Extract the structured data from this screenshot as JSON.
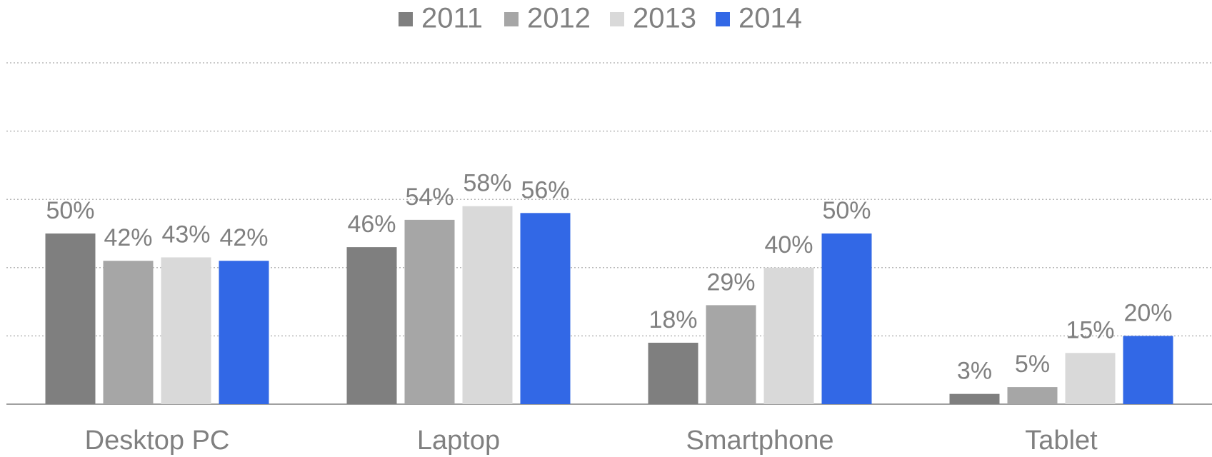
{
  "chart_data": {
    "type": "bar",
    "categories": [
      "Desktop PC",
      "Laptop",
      "Smartphone",
      "Tablet"
    ],
    "series": [
      {
        "name": "2011",
        "color": "#7f7f7f",
        "values": [
          50,
          46,
          18,
          3
        ],
        "value_labels": [
          "50%",
          "46%",
          "18%",
          "3%"
        ]
      },
      {
        "name": "2012",
        "color": "#a6a6a6",
        "values": [
          42,
          54,
          29,
          5
        ],
        "value_labels": [
          "42%",
          "54%",
          "29%",
          "5%"
        ]
      },
      {
        "name": "2013",
        "color": "#d9d9d9",
        "values": [
          43,
          58,
          40,
          15
        ],
        "value_labels": [
          "43%",
          "58%",
          "40%",
          "15%"
        ]
      },
      {
        "name": "2014",
        "color": "#3268e6",
        "values": [
          42,
          56,
          50,
          20
        ],
        "value_labels": [
          "42%",
          "56%",
          "50%",
          "20%"
        ]
      }
    ],
    "ylim": [
      0,
      100
    ],
    "yticks": [
      0,
      20,
      40,
      60,
      80,
      100
    ],
    "grid": true,
    "legend": "top"
  }
}
